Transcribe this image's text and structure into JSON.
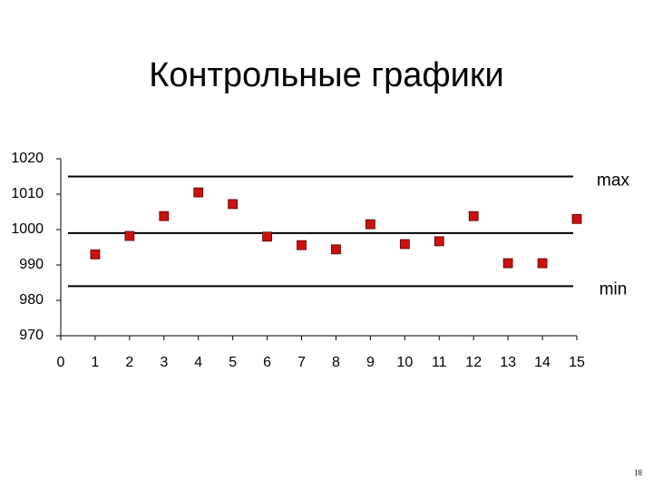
{
  "chart_data": {
    "type": "scatter",
    "title": "Контрольные графики",
    "x": [
      1,
      2,
      3,
      4,
      5,
      6,
      7,
      8,
      9,
      10,
      11,
      12,
      13,
      14,
      15
    ],
    "series": [
      {
        "color": "#cc1111",
        "values": [
          993,
          998.2,
          1003.8,
          1010.5,
          1007.2,
          998,
          995.6,
          994.4,
          1001.5,
          995.9,
          996.7,
          1003.8,
          990.5,
          990.5,
          1003
        ]
      }
    ],
    "reference_lines": [
      {
        "value": 1015,
        "label": "max"
      },
      {
        "value": 999
      },
      {
        "value": 984,
        "label": "min"
      }
    ],
    "xlim": [
      0,
      15
    ],
    "xticks": [
      0,
      1,
      2,
      3,
      4,
      5,
      6,
      7,
      8,
      9,
      10,
      11,
      12,
      13,
      14,
      15
    ],
    "ylim": [
      970,
      1020
    ],
    "yticks": [
      970,
      980,
      990,
      1000,
      1010,
      1020
    ]
  },
  "page_number": "18"
}
